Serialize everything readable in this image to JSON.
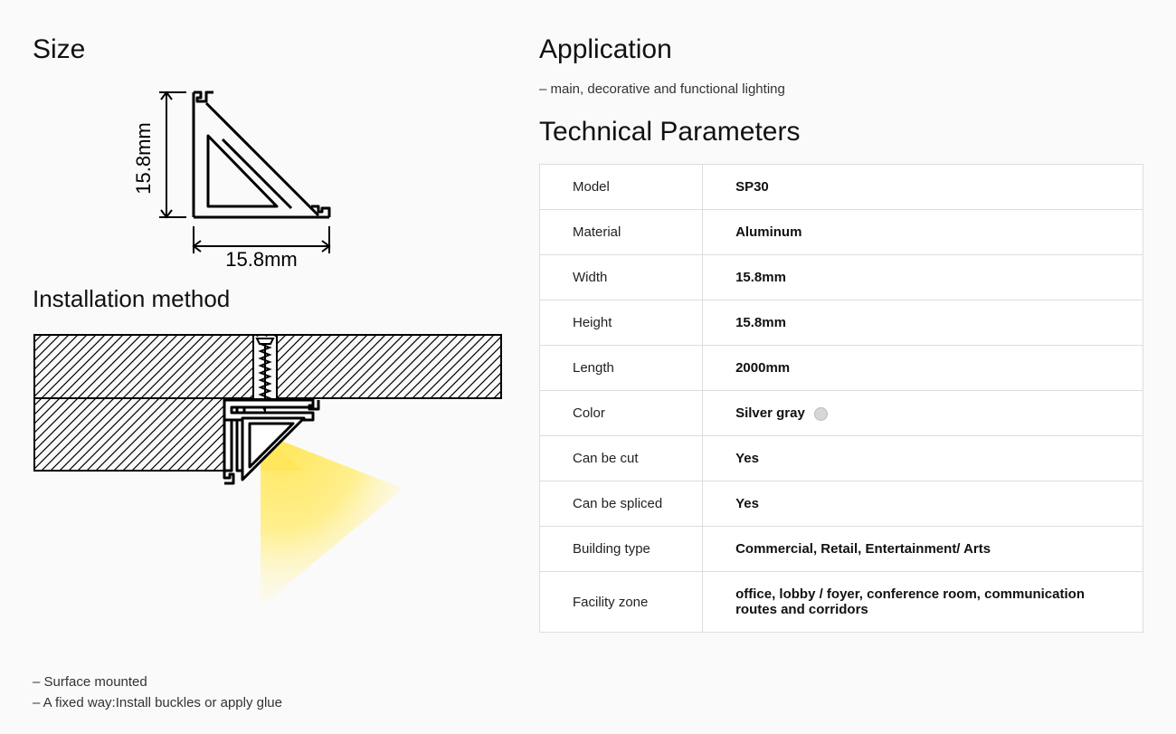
{
  "left": {
    "size_heading": "Size",
    "dim_height_label": "15.8mm",
    "dim_width_label": "15.8mm",
    "install_heading": "Installation method",
    "install_notes": [
      "– Surface mounted",
      "– A fixed way:Install buckles or apply glue"
    ]
  },
  "right": {
    "application_heading": "Application",
    "application_note": "– main, decorative and functional lighting",
    "tech_heading": "Technical Parameters",
    "table": {
      "rows": [
        {
          "label": "Model",
          "value": "SP30"
        },
        {
          "label": "Material",
          "value": "Aluminum"
        },
        {
          "label": "Width",
          "value": "15.8mm"
        },
        {
          "label": "Height",
          "value": "15.8mm"
        },
        {
          "label": "Length",
          "value": "2000mm"
        },
        {
          "label": "Color",
          "value": "Silver gray",
          "swatch": "#d7d7d7"
        },
        {
          "label": "Can be cut",
          "value": "Yes"
        },
        {
          "label": "Can be spliced",
          "value": "Yes"
        },
        {
          "label": "Building type",
          "value": "Commercial, Retail, Entertainment/ Arts"
        },
        {
          "label": "Facility zone",
          "value": "office, lobby / foyer, conference room, communication routes and corridors"
        }
      ]
    }
  },
  "diagram": {
    "profile_stroke": "#000000",
    "hatch_stroke": "#000000",
    "light_fill_inner": "#ffe65a",
    "light_fill_outer": "#fff6b8",
    "background": "#fafafb"
  }
}
